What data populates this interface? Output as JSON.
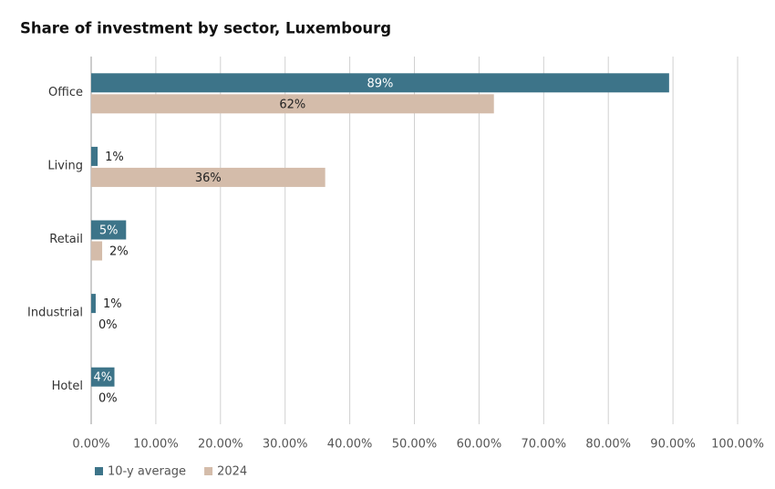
{
  "chart_data": {
    "type": "bar",
    "orientation": "horizontal",
    "title": "Share of investment by sector, Luxembourg",
    "categories": [
      "Office",
      "Living",
      "Retail",
      "Industrial",
      "Hotel"
    ],
    "series": [
      {
        "name": "10-y average",
        "color": "#3d7489",
        "values": [
          89.4,
          1.0,
          5.4,
          0.7,
          3.6
        ],
        "value_labels": [
          "89%",
          "1%",
          "5%",
          "1%",
          "4%"
        ]
      },
      {
        "name": "2024",
        "color": "#d4bcaa",
        "values": [
          62.3,
          36.2,
          1.7,
          0,
          0
        ],
        "value_labels": [
          "62%",
          "36%",
          "2%",
          "0%",
          "0%"
        ]
      }
    ],
    "xlim": [
      0,
      100
    ],
    "xticks": [
      {
        "value": 0,
        "label": "0.00%"
      },
      {
        "value": 10,
        "label": "10.00%"
      },
      {
        "value": 20,
        "label": "20.00%"
      },
      {
        "value": 30,
        "label": "30.00%"
      },
      {
        "value": 40,
        "label": "40.00%"
      },
      {
        "value": 50,
        "label": "50.00%"
      },
      {
        "value": 60,
        "label": "60.00%"
      },
      {
        "value": 70,
        "label": "70.00%"
      },
      {
        "value": 80,
        "label": "80.00%"
      },
      {
        "value": 90,
        "label": "90.00%"
      },
      {
        "value": 100,
        "label": "100.00%"
      }
    ],
    "grid": true,
    "legend": "bottom-left"
  }
}
